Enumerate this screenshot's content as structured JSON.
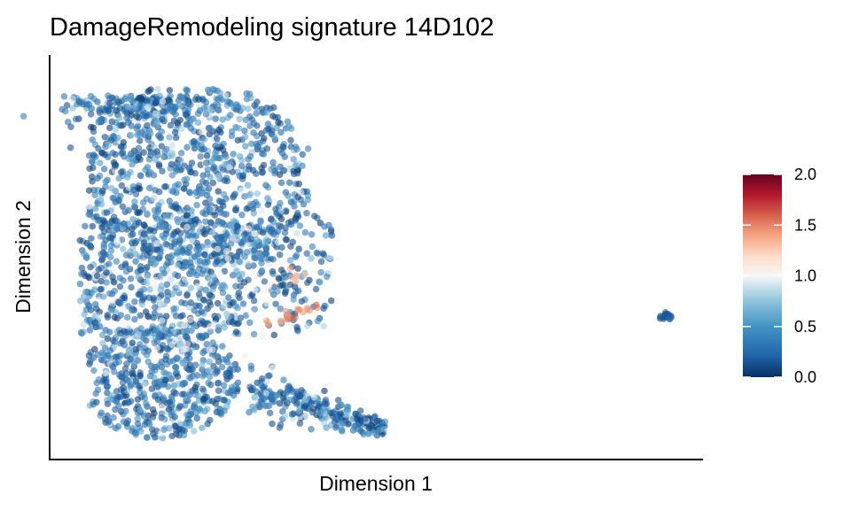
{
  "chart_data": {
    "type": "scatter",
    "title": "DamageRemodeling signature 14D102",
    "xlabel": "Dimension 1",
    "ylabel": "Dimension 2",
    "x_ticks_shown": false,
    "y_ticks_shown": false,
    "grid": false,
    "colorbar": {
      "label": "",
      "ticks": [
        "0.0",
        "0.5",
        "1.0",
        "1.5",
        "2.0"
      ],
      "range": [
        0.0,
        2.0
      ],
      "placement": "right",
      "colors": [
        "#053061",
        "#2166ac",
        "#4393c3",
        "#92c5de",
        "#f7f7f7",
        "#fddbc7",
        "#f4a582",
        "#d6604d",
        "#b2182b",
        "#67001f"
      ]
    },
    "point_color_scale": "RdBu diverging (blue = low, red = high)",
    "point_alpha": 0.6
  }
}
